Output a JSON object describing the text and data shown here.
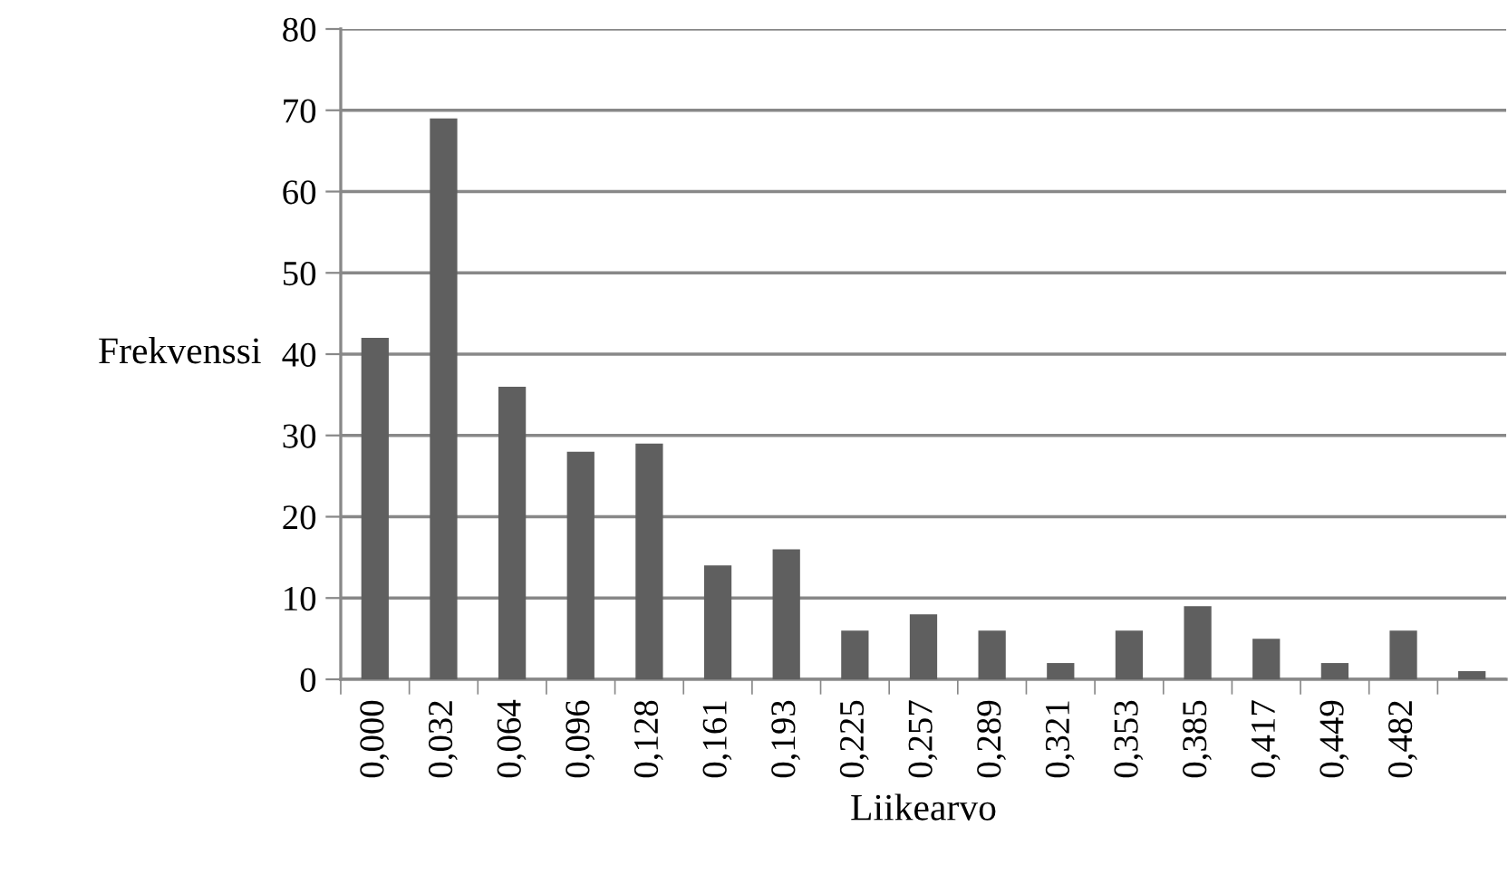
{
  "chart_data": {
    "type": "bar",
    "xlabel": "Liikearvo",
    "ylabel": "Frekvenssi",
    "categories": [
      "0,000",
      "0,032",
      "0,064",
      "0,096",
      "0,128",
      "0,161",
      "0,193",
      "0,225",
      "0,257",
      "0,289",
      "0,321",
      "0,353",
      "0,385",
      "0,417",
      "0,449",
      "0,482",
      null
    ],
    "values": [
      42,
      69,
      36,
      28,
      29,
      14,
      16,
      6,
      8,
      6,
      2,
      6,
      9,
      5,
      2,
      6,
      1
    ],
    "color": "#5f5f5f",
    "ylim": [
      0,
      80
    ],
    "yticks": [
      0,
      10,
      20,
      30,
      40,
      50,
      60,
      70,
      80
    ],
    "grid": "y"
  }
}
